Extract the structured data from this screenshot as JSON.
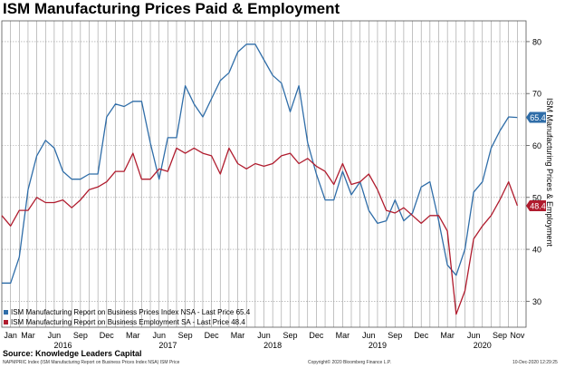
{
  "title": "ISM Manufacturing Prices Paid & Employment",
  "source": "Source: Knowledge Leaders Capital",
  "footer": {
    "left": "NAPMPRIC Index (ISM Manufacturing Report on Business Prices Index NSA) ISM Price",
    "mid": "Copyright© 2020 Bloomberg Finance L.P.",
    "right": "10-Dec-2020 12:29:25"
  },
  "chart_data": {
    "type": "line",
    "ylabel": "ISM Manufacturing Prices & Employment",
    "ylim": [
      25,
      84
    ],
    "yticks": [
      30,
      40,
      50,
      60,
      70,
      80
    ],
    "grid": true,
    "legend_position": "bottom-left",
    "x_range": [
      "2015-12",
      "2020-12"
    ],
    "month_labels": [
      {
        "label": "Jan",
        "date": "2016-01"
      },
      {
        "label": "Mar",
        "date": "2016-03"
      },
      {
        "label": "Jun",
        "date": "2016-06"
      },
      {
        "label": "Sep",
        "date": "2016-09"
      },
      {
        "label": "Dec",
        "date": "2016-12"
      },
      {
        "label": "Mar",
        "date": "2017-03"
      },
      {
        "label": "Jun",
        "date": "2017-06"
      },
      {
        "label": "Sep",
        "date": "2017-09"
      },
      {
        "label": "Dec",
        "date": "2017-12"
      },
      {
        "label": "Mar",
        "date": "2018-03"
      },
      {
        "label": "Jun",
        "date": "2018-06"
      },
      {
        "label": "Sep",
        "date": "2018-09"
      },
      {
        "label": "Dec",
        "date": "2018-12"
      },
      {
        "label": "Mar",
        "date": "2019-03"
      },
      {
        "label": "Jun",
        "date": "2019-06"
      },
      {
        "label": "Sep",
        "date": "2019-09"
      },
      {
        "label": "Dec",
        "date": "2019-12"
      },
      {
        "label": "Mar",
        "date": "2020-03"
      },
      {
        "label": "Jun",
        "date": "2020-06"
      },
      {
        "label": "Sep",
        "date": "2020-09"
      },
      {
        "label": "Nov",
        "date": "2020-11"
      }
    ],
    "year_labels": [
      {
        "label": "2016",
        "date": "2016-07"
      },
      {
        "label": "2017",
        "date": "2017-07"
      },
      {
        "label": "2018",
        "date": "2018-07"
      },
      {
        "label": "2019",
        "date": "2019-07"
      },
      {
        "label": "2020",
        "date": "2020-07"
      }
    ],
    "dates": [
      "2015-12",
      "2016-01",
      "2016-02",
      "2016-03",
      "2016-04",
      "2016-05",
      "2016-06",
      "2016-07",
      "2016-08",
      "2016-09",
      "2016-10",
      "2016-11",
      "2016-12",
      "2017-01",
      "2017-02",
      "2017-03",
      "2017-04",
      "2017-05",
      "2017-06",
      "2017-07",
      "2017-08",
      "2017-09",
      "2017-10",
      "2017-11",
      "2017-12",
      "2018-01",
      "2018-02",
      "2018-03",
      "2018-04",
      "2018-05",
      "2018-06",
      "2018-07",
      "2018-08",
      "2018-09",
      "2018-10",
      "2018-11",
      "2018-12",
      "2019-01",
      "2019-02",
      "2019-03",
      "2019-04",
      "2019-05",
      "2019-06",
      "2019-07",
      "2019-08",
      "2019-09",
      "2019-10",
      "2019-11",
      "2019-12",
      "2020-01",
      "2020-02",
      "2020-03",
      "2020-04",
      "2020-05",
      "2020-06",
      "2020-07",
      "2020-08",
      "2020-09",
      "2020-10",
      "2020-11"
    ],
    "series": [
      {
        "name": "ISM Manufacturing Report on Business Prices Index NSA - Last Price",
        "last_value": "65.4",
        "color": "#2f6da8",
        "values": [
          33.5,
          33.5,
          38.5,
          51.5,
          58.0,
          61.0,
          59.5,
          55.0,
          53.5,
          53.5,
          54.5,
          54.5,
          65.5,
          68.0,
          67.5,
          68.5,
          68.5,
          60.5,
          53.5,
          61.5,
          61.5,
          71.5,
          68.0,
          65.5,
          69.0,
          72.5,
          74.0,
          78.0,
          79.5,
          79.5,
          76.5,
          73.5,
          72.0,
          66.5,
          71.5,
          60.5,
          54.5,
          49.5,
          49.5,
          55.0,
          50.5,
          53.0,
          47.5,
          45.0,
          45.5,
          49.5,
          45.5,
          47.0,
          52.0,
          53.0,
          45.5,
          37.0,
          35.0,
          40.0,
          51.0,
          53.0,
          59.5,
          62.8,
          65.5,
          65.4
        ]
      },
      {
        "name": "ISM Manufacturing Report on Business Employment SA - Last Price",
        "last_value": "48.4",
        "color": "#b01c2e",
        "values": [
          46.5,
          44.5,
          47.5,
          47.5,
          50.0,
          49.0,
          49.0,
          49.5,
          48.0,
          49.5,
          51.5,
          52.0,
          53.0,
          55.0,
          55.0,
          58.5,
          53.5,
          53.5,
          55.5,
          55.0,
          59.5,
          58.5,
          59.5,
          58.5,
          58.0,
          54.5,
          59.5,
          56.5,
          55.5,
          56.5,
          56.0,
          56.5,
          58.0,
          58.5,
          56.5,
          57.5,
          56.0,
          55.0,
          52.5,
          56.5,
          52.5,
          53.0,
          54.5,
          51.5,
          47.5,
          47.0,
          48.0,
          46.5,
          45.0,
          46.5,
          46.5,
          43.5,
          27.5,
          32.0,
          42.0,
          44.5,
          46.5,
          49.5,
          53.0,
          48.4
        ]
      }
    ]
  }
}
